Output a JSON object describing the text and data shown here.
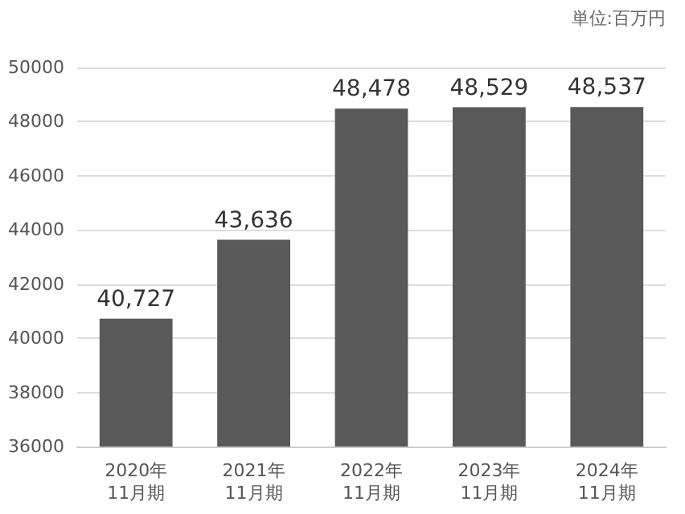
{
  "chart_data": {
    "type": "bar",
    "categories": [
      "2020年\n11月期",
      "2021年\n11月期",
      "2022年\n11月期",
      "2023年\n11月期",
      "2024年\n11月期"
    ],
    "values": [
      40727,
      43636,
      48478,
      48529,
      48537
    ],
    "value_labels": [
      "40,727",
      "43,636",
      "48,478",
      "48,529",
      "48,537"
    ],
    "color": "#595959",
    "ylim": [
      36000,
      50000
    ],
    "yticks": [
      36000,
      38000,
      40000,
      42000,
      44000,
      46000,
      48000,
      50000
    ],
    "grid": "y",
    "annotations": [
      "単位:百万円"
    ]
  }
}
